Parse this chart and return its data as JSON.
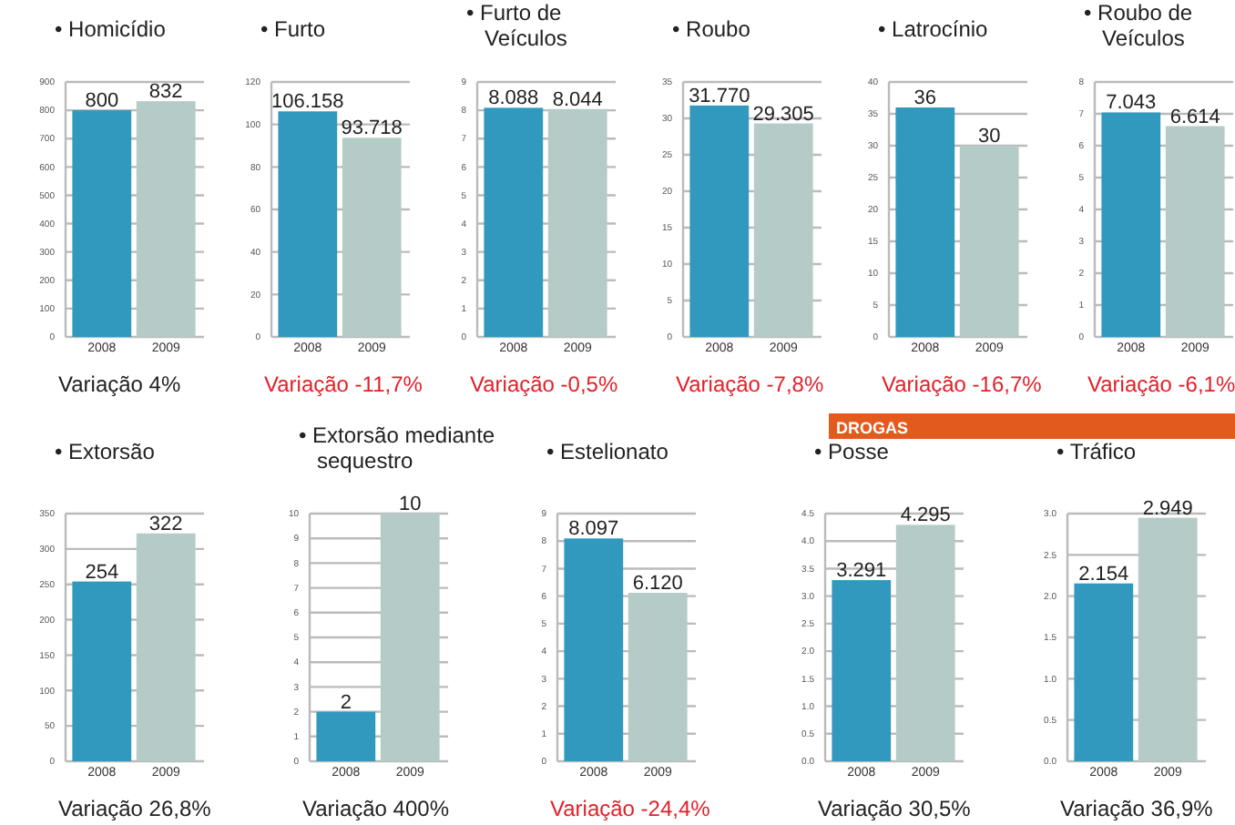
{
  "chart_data": [
    {
      "type": "bar",
      "title": "• Homicídio",
      "categories": [
        "2008",
        "2009"
      ],
      "values": [
        800,
        832
      ],
      "colors": [
        "#3199bd",
        "#b4cbc7"
      ],
      "value_labels": [
        "800",
        "832"
      ],
      "ylim": [
        0,
        900
      ],
      "yticks": [
        0,
        100,
        200,
        300,
        400,
        500,
        600,
        700,
        800,
        900
      ],
      "grid": "y",
      "annotations": [
        "Variação 4%"
      ]
    },
    {
      "type": "bar",
      "title": "• Furto",
      "categories": [
        "2008",
        "2009"
      ],
      "values": [
        106.158,
        93.718
      ],
      "colors": [
        "#3199bd",
        "#b4cbc7"
      ],
      "value_labels": [
        "106.158",
        "93.718"
      ],
      "ylim": [
        0,
        120
      ],
      "yticks": [
        0,
        20,
        40,
        60,
        80,
        100,
        120
      ],
      "grid": "y",
      "annotations": [
        "Variação -11,7%"
      ]
    },
    {
      "type": "bar",
      "title": "• Furto de Veículos",
      "categories": [
        "2008",
        "2009"
      ],
      "values": [
        8.088,
        8.044
      ],
      "colors": [
        "#3199bd",
        "#b4cbc7"
      ],
      "value_labels": [
        "8.088",
        "8.044"
      ],
      "ylim": [
        0,
        9
      ],
      "yticks": [
        0,
        1,
        2,
        3,
        4,
        5,
        6,
        7,
        8,
        9
      ],
      "grid": "y",
      "annotations": [
        "Variação -0,5%"
      ]
    },
    {
      "type": "bar",
      "title": "• Roubo",
      "categories": [
        "2008",
        "2009"
      ],
      "values": [
        31.77,
        29.305
      ],
      "colors": [
        "#3199bd",
        "#b4cbc7"
      ],
      "value_labels": [
        "31.770",
        "29.305"
      ],
      "ylim": [
        0,
        35
      ],
      "yticks": [
        0,
        5,
        10,
        15,
        20,
        25,
        30,
        35
      ],
      "grid": "y",
      "annotations": [
        "Variação -7,8%"
      ]
    },
    {
      "type": "bar",
      "title": "• Latrocínio",
      "categories": [
        "2008",
        "2009"
      ],
      "values": [
        36,
        30
      ],
      "colors": [
        "#3199bd",
        "#b4cbc7"
      ],
      "value_labels": [
        "36",
        "30"
      ],
      "ylim": [
        0,
        40
      ],
      "yticks": [
        0,
        5,
        10,
        15,
        20,
        25,
        30,
        35,
        40
      ],
      "grid": "y",
      "annotations": [
        "Variação -16,7%"
      ]
    },
    {
      "type": "bar",
      "title": "• Roubo de Veículos",
      "categories": [
        "2008",
        "2009"
      ],
      "values": [
        7.043,
        6.614
      ],
      "colors": [
        "#3199bd",
        "#b4cbc7"
      ],
      "value_labels": [
        "7.043",
        "6.614"
      ],
      "ylim": [
        0,
        8
      ],
      "yticks": [
        0,
        1,
        2,
        3,
        4,
        5,
        6,
        7,
        8
      ],
      "grid": "y",
      "annotations": [
        "Variação -6,1%"
      ]
    },
    {
      "type": "bar",
      "title": "• Extorsão",
      "categories": [
        "2008",
        "2009"
      ],
      "values": [
        254,
        322
      ],
      "colors": [
        "#3199bd",
        "#b4cbc7"
      ],
      "value_labels": [
        "254",
        "322"
      ],
      "ylim": [
        0,
        350
      ],
      "yticks": [
        0,
        50,
        100,
        150,
        200,
        250,
        300,
        350
      ],
      "grid": "y",
      "annotations": [
        "Variação 26,8%"
      ]
    },
    {
      "type": "bar",
      "title": "• Extorsão mediante sequestro",
      "categories": [
        "2008",
        "2009"
      ],
      "values": [
        2,
        10
      ],
      "colors": [
        "#3199bd",
        "#b4cbc7"
      ],
      "value_labels": [
        "2",
        "10"
      ],
      "ylim": [
        0,
        10
      ],
      "yticks": [
        0,
        1,
        2,
        3,
        4,
        5,
        6,
        7,
        8,
        9,
        10
      ],
      "grid": "y",
      "annotations": [
        "Variação 400%"
      ]
    },
    {
      "type": "bar",
      "title": "• Estelionato",
      "categories": [
        "2008",
        "2009"
      ],
      "values": [
        8.097,
        6.12
      ],
      "colors": [
        "#3199bd",
        "#b4cbc7"
      ],
      "value_labels": [
        "8.097",
        "6.120"
      ],
      "ylim": [
        0,
        9
      ],
      "yticks": [
        0,
        1,
        2,
        3,
        4,
        5,
        6,
        7,
        8,
        9
      ],
      "grid": "y",
      "annotations": [
        "Variação -24,4%"
      ]
    },
    {
      "type": "bar",
      "title": "• Posse",
      "subtitle": "DROGAS",
      "categories": [
        "2008",
        "2009"
      ],
      "values": [
        3.291,
        4.295
      ],
      "colors": [
        "#3199bd",
        "#b4cbc7"
      ],
      "value_labels": [
        "3.291",
        "4.295"
      ],
      "ylim": [
        0,
        4.5
      ],
      "yticks": [
        {
          "value": 0,
          "label": "0.0"
        },
        0.5,
        {
          "value": 1,
          "label": "1.0"
        },
        1.5,
        {
          "value": 2,
          "label": "2.0"
        },
        2.5,
        {
          "value": 3,
          "label": "3.0"
        },
        3.5,
        {
          "value": 4,
          "label": "4.0"
        },
        4.5
      ],
      "grid": "y",
      "annotations": [
        "Variação 30,5%"
      ]
    },
    {
      "type": "bar",
      "title": "• Tráfico",
      "categories": [
        "2008",
        "2009"
      ],
      "values": [
        2.154,
        2.949
      ],
      "colors": [
        "#3199bd",
        "#b4cbc7"
      ],
      "value_labels": [
        "2.154",
        "2.949"
      ],
      "ylim": [
        0,
        3
      ],
      "yticks": [
        {
          "value": 0,
          "label": "0.0"
        },
        0.5,
        {
          "value": 1,
          "label": "1.0"
        },
        1.5,
        {
          "value": 2,
          "label": "2.0"
        },
        2.5,
        {
          "value": 3,
          "label": "3.0"
        }
      ],
      "grid": "y",
      "annotations": [
        "Variação 36,9%"
      ]
    }
  ]
}
